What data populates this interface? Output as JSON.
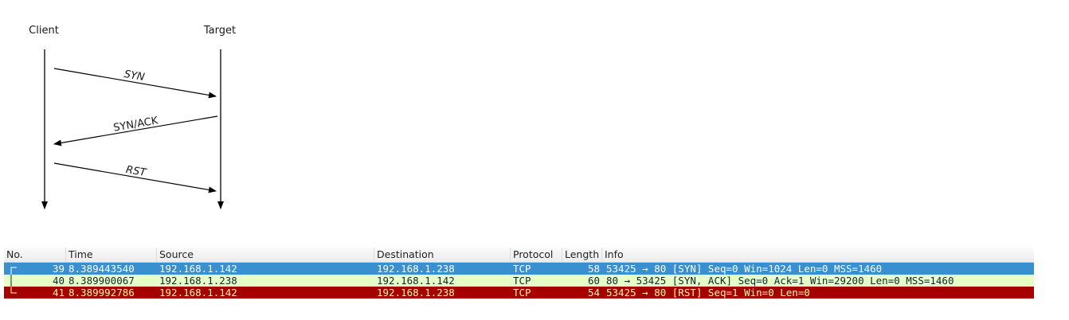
{
  "diagram": {
    "client_label": "Client",
    "target_label": "Target",
    "messages": [
      {
        "label": "SYN",
        "direction": "client-to-target"
      },
      {
        "label": "SYN/ACK",
        "direction": "target-to-client"
      },
      {
        "label": "RST",
        "direction": "client-to-target"
      }
    ],
    "line_color": "#000000"
  },
  "packet_list": {
    "columns": [
      "No.",
      "Time",
      "Source",
      "Destination",
      "Protocol",
      "Length",
      "Info"
    ],
    "rows": [
      {
        "no": "39",
        "time": "8.389443540",
        "source": "192.168.1.142",
        "destination": "192.168.1.238",
        "protocol": "TCP",
        "length": "58",
        "info": "53425 → 80 [SYN] Seq=0 Win=1024 Len=0 MSS=1460",
        "bg": "#3a8fcf",
        "fg": "#ffffff",
        "conv": "start",
        "selected": true
      },
      {
        "no": "40",
        "time": "8.389900067",
        "source": "192.168.1.238",
        "destination": "192.168.1.142",
        "protocol": "TCP",
        "length": "60",
        "info": "80 → 53425 [SYN, ACK] Seq=0 Ack=1 Win=29200 Len=0 MSS=1460",
        "bg": "#e4ffc7",
        "fg": "#12272e",
        "conv": "middle",
        "selected": false
      },
      {
        "no": "41",
        "time": "8.389992786",
        "source": "192.168.1.142",
        "destination": "192.168.1.238",
        "protocol": "TCP",
        "length": "54",
        "info": "53425 → 80 [RST] Seq=1 Win=0 Len=0",
        "bg": "#a40000",
        "fg": "#fffc9c",
        "conv": "end",
        "selected": false
      }
    ]
  }
}
